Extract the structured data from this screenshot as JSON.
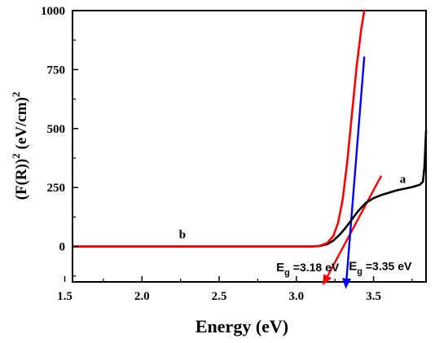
{
  "chart_data": {
    "type": "line",
    "xlabel": "Energy (eV)",
    "ylabel": "(F(R))² (eV/cm)²",
    "ylabel_parts": {
      "base": "(F(R))",
      "sup1": "2",
      "mid": " (eV/cm)",
      "sup2": "2"
    },
    "xlim": [
      1.55,
      3.84
    ],
    "ylim": [
      -150,
      1000
    ],
    "x_ticks": [
      1.5,
      2.0,
      2.5,
      3.0,
      3.5
    ],
    "x_tick_labels": [
      "1.5",
      "2.0",
      "2.5",
      "3.0",
      "3.5"
    ],
    "y_ticks": [
      0,
      250,
      500,
      750,
      1000
    ],
    "y_tick_labels": [
      "0",
      "250",
      "500",
      "750",
      "1000"
    ],
    "grid": false,
    "series": [
      {
        "name": "a",
        "color": "#000000",
        "x": [
          1.56,
          2.0,
          2.5,
          3.0,
          3.1,
          3.15,
          3.2,
          3.24,
          3.28,
          3.32,
          3.36,
          3.4,
          3.45,
          3.5,
          3.55,
          3.6,
          3.65,
          3.7,
          3.75,
          3.8,
          3.82,
          3.83,
          3.84
        ],
        "y": [
          0,
          0,
          0,
          0,
          0,
          2,
          10,
          25,
          50,
          80,
          115,
          150,
          185,
          205,
          218,
          228,
          238,
          245,
          252,
          262,
          275,
          340,
          490
        ]
      },
      {
        "name": "b",
        "color": "#ff0000",
        "x": [
          1.56,
          2.0,
          2.5,
          3.0,
          3.1,
          3.15,
          3.2,
          3.24,
          3.27,
          3.3,
          3.33,
          3.36,
          3.39,
          3.42,
          3.44
        ],
        "y": [
          0,
          0,
          0,
          0,
          0,
          3,
          15,
          45,
          100,
          200,
          360,
          560,
          760,
          920,
          1000
        ]
      }
    ],
    "fit_lines": [
      {
        "color": "#ff0000",
        "x": [
          3.55,
          3.17
        ],
        "y": [
          300,
          -165
        ],
        "arrow_end": true
      },
      {
        "color": "#0000ff",
        "x": [
          3.44,
          3.32
        ],
        "y": [
          805,
          -180
        ],
        "arrow_end": true
      }
    ],
    "curve_labels": [
      {
        "text": "a",
        "x": 3.67,
        "y": 270
      },
      {
        "text": "b",
        "x": 2.24,
        "y": 35
      }
    ],
    "annotations": [
      {
        "prefix": "E",
        "sub": "g",
        "value": " =3.18 eV",
        "x": 2.87,
        "y": -105
      },
      {
        "prefix": "E",
        "sub": "g",
        "value": " =3.35 eV",
        "x": 3.34,
        "y": -100
      }
    ]
  }
}
